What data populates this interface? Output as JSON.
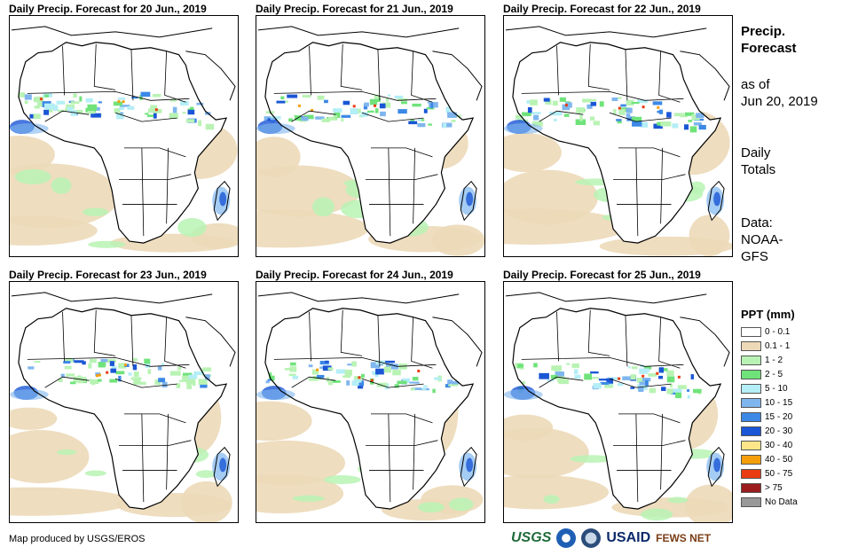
{
  "panels": [
    {
      "title": "Daily Precip. Forecast for 20 Jun., 2019"
    },
    {
      "title": "Daily Precip. Forecast for 21 Jun., 2019"
    },
    {
      "title": "Daily Precip. Forecast for 22 Jun., 2019"
    },
    {
      "title": "Daily Precip. Forecast for 23 Jun., 2019"
    },
    {
      "title": "Daily Precip. Forecast for 24 Jun., 2019"
    },
    {
      "title": "Daily Precip. Forecast for 25 Jun., 2019"
    }
  ],
  "sidebar": {
    "title_line1": "Precip.",
    "title_line2": "Forecast",
    "asof_line1": "as of",
    "asof_line2": "Jun 20, 2019",
    "totals_line1": "Daily",
    "totals_line2": "Totals",
    "data_line1": "Data:",
    "data_line2": "NOAA-",
    "data_line3": "GFS"
  },
  "legend": {
    "title": "PPT (mm)",
    "items": [
      {
        "label": "0 - 0.1",
        "color": "#ffffff"
      },
      {
        "label": "0.1 - 1",
        "color": "#ecd9b8"
      },
      {
        "label": "1 - 2",
        "color": "#b9f3b4"
      },
      {
        "label": "2 - 5",
        "color": "#6fe37a"
      },
      {
        "label": "5 - 10",
        "color": "#b4eef6"
      },
      {
        "label": "10 - 15",
        "color": "#7fb6ee"
      },
      {
        "label": "15 - 20",
        "color": "#3c88e6"
      },
      {
        "label": "20 - 30",
        "color": "#1a56d6"
      },
      {
        "label": "30 - 40",
        "color": "#fde68a"
      },
      {
        "label": "40 - 50",
        "color": "#f59e0b"
      },
      {
        "label": "50 - 75",
        "color": "#ea3c12"
      },
      {
        "label": "> 75",
        "color": "#9b1c1c"
      },
      {
        "label": "No Data",
        "color": "#999999"
      }
    ]
  },
  "footer": {
    "credit": "Map produced by USGS/EROS",
    "logos": [
      "USGS",
      "NOAA",
      "DOI",
      "USAID",
      "FEWS NET"
    ]
  }
}
